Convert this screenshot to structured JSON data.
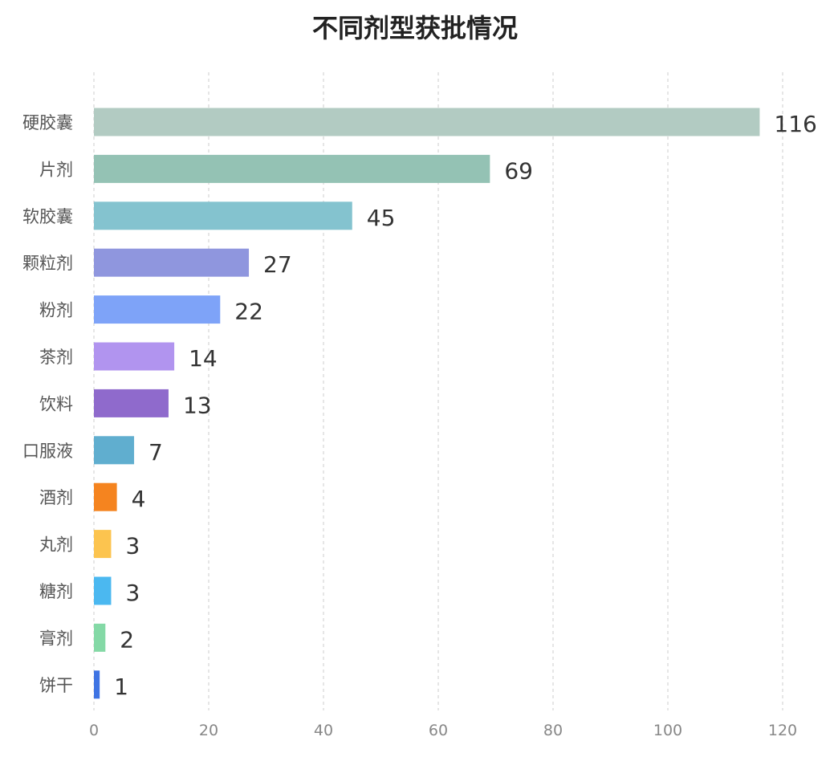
{
  "chart_data": {
    "type": "bar",
    "orientation": "horizontal",
    "title": "不同剂型获批情况",
    "xlabel": "",
    "ylabel": "",
    "xlim": [
      0,
      120
    ],
    "xticks": [
      0,
      20,
      40,
      60,
      80,
      100,
      120
    ],
    "grid": "vertical-dashed",
    "legend": "none",
    "categories": [
      "硬胶囊",
      "片剂",
      "软胶囊",
      "颗粒剂",
      "粉剂",
      "茶剂",
      "饮料",
      "口服液",
      "酒剂",
      "丸剂",
      "糖剂",
      "膏剂",
      "饼干"
    ],
    "values": [
      116,
      69,
      45,
      27,
      22,
      14,
      13,
      7,
      4,
      3,
      3,
      2,
      1
    ],
    "colors": [
      "#b2cbc2",
      "#94c2b4",
      "#84c3cf",
      "#8f96de",
      "#7ea3f8",
      "#b194ef",
      "#8f6acc",
      "#60aecf",
      "#f5841f",
      "#fcc44f",
      "#4bb8f0",
      "#84d9a6",
      "#3f74e3"
    ]
  }
}
